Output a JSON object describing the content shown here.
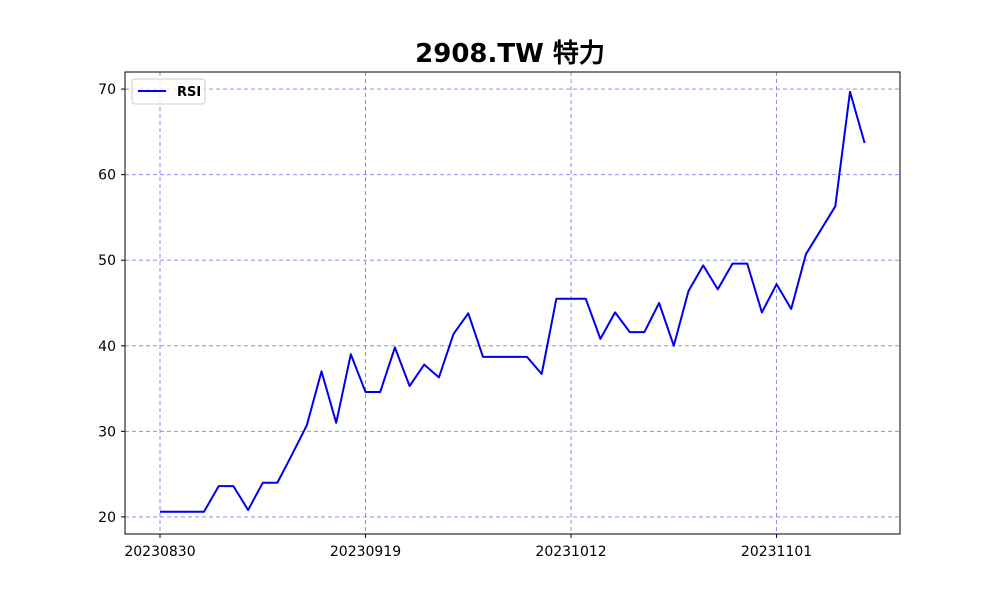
{
  "chart_data": {
    "type": "line",
    "title": "2908.TW 特力",
    "xlabel": "",
    "ylabel": "",
    "grid": true,
    "legend_position": "top-left",
    "colors": {
      "series": "#0000ee",
      "grid": "#8080ee",
      "axes": "#000000"
    },
    "x_tick_labels": [
      "20230830",
      "20230919",
      "20231012",
      "20231101"
    ],
    "x_tick_indices": [
      0,
      14,
      28,
      42
    ],
    "ylim": [
      18,
      72
    ],
    "y_ticks": [
      20,
      30,
      40,
      50,
      60,
      70
    ],
    "series": [
      {
        "name": "RSI",
        "values": [
          20.6,
          20.6,
          20.6,
          20.6,
          23.6,
          23.6,
          20.8,
          24.0,
          24.0,
          27.3,
          30.7,
          37.0,
          31.0,
          39.0,
          34.6,
          34.6,
          39.8,
          35.3,
          37.8,
          36.3,
          41.4,
          43.8,
          38.7,
          38.7,
          38.7,
          38.7,
          36.7,
          45.5,
          45.5,
          45.5,
          40.8,
          43.9,
          41.6,
          41.6,
          45.0,
          40.0,
          46.4,
          49.4,
          46.6,
          49.6,
          49.6,
          43.9,
          47.2,
          44.3,
          50.7,
          53.5,
          56.3,
          69.7,
          63.7
        ]
      }
    ]
  }
}
